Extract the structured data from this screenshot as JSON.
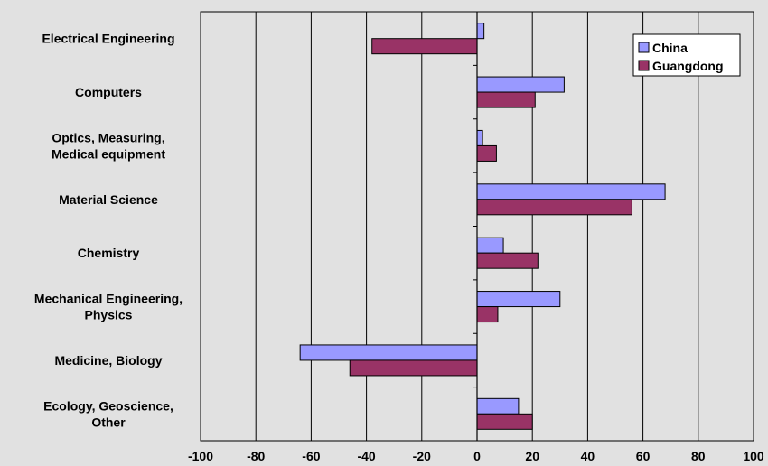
{
  "chart_data": {
    "type": "bar",
    "orientation": "horizontal",
    "categories": [
      [
        "Electrical Engineering"
      ],
      [
        "Computers"
      ],
      [
        "Optics, Measuring,",
        "Medical equipment"
      ],
      [
        "Material Science"
      ],
      [
        "Chemistry"
      ],
      [
        "Mechanical Engineering,",
        "Physics"
      ],
      [
        "Medicine, Biology"
      ],
      [
        "Ecology, Geoscience,",
        "Other"
      ]
    ],
    "series": [
      {
        "name": "China",
        "color": "#9999ff",
        "values": [
          2.5,
          31.5,
          2,
          68,
          9.5,
          30,
          -64,
          15
        ]
      },
      {
        "name": "Guangdong",
        "color": "#993366",
        "values": [
          -38,
          21,
          7,
          56,
          22,
          7.5,
          -46,
          20
        ]
      }
    ],
    "xlim": [
      -100,
      100
    ],
    "xticks": [
      -100,
      -80,
      -60,
      -40,
      -20,
      0,
      20,
      40,
      60,
      80,
      100
    ],
    "grid": "vertical",
    "legend": "top-right"
  }
}
